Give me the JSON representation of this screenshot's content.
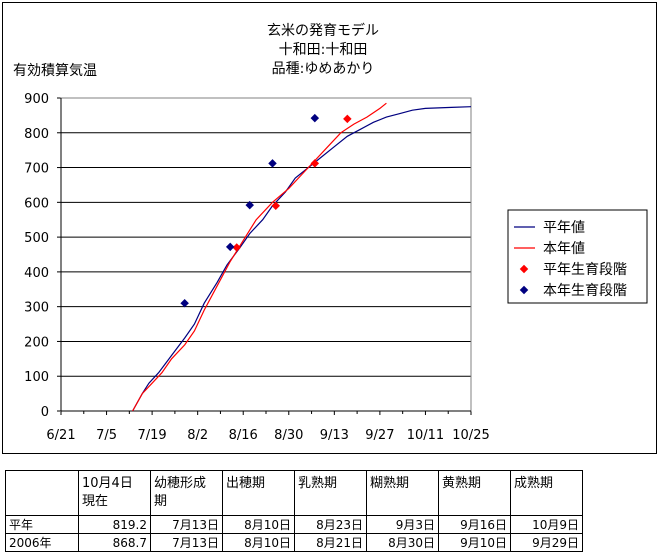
{
  "chart_data": {
    "type": "line",
    "title_lines": [
      "玄米の発育モデル",
      "十和田:十和田",
      "品種:ゆめあかり"
    ],
    "ylabel": "有効積算気温",
    "ylim": [
      0,
      900
    ],
    "yticks": [
      0,
      100,
      200,
      300,
      400,
      500,
      600,
      700,
      800,
      900
    ],
    "x_ticks": [
      "6/21",
      "7/5",
      "7/19",
      "8/2",
      "8/16",
      "8/30",
      "9/13",
      "9/27",
      "10/11",
      "10/25"
    ],
    "x_tick_day": [
      0,
      14,
      28,
      42,
      56,
      70,
      84,
      98,
      112,
      126
    ],
    "xlim": [
      0,
      126
    ],
    "grid": "horizontal",
    "legend_position": "right",
    "series": [
      {
        "name": "平年値",
        "kind": "line",
        "color": "#000080",
        "points": [
          [
            22,
            0
          ],
          [
            25,
            50
          ],
          [
            27,
            80
          ],
          [
            30,
            110
          ],
          [
            34,
            160
          ],
          [
            38,
            210
          ],
          [
            41,
            250
          ],
          [
            44,
            310
          ],
          [
            48,
            370
          ],
          [
            51,
            420
          ],
          [
            55,
            470
          ],
          [
            58,
            510
          ],
          [
            62,
            550
          ],
          [
            65,
            590
          ],
          [
            69,
            630
          ],
          [
            72,
            670
          ],
          [
            76,
            700
          ],
          [
            80,
            730
          ],
          [
            84,
            760
          ],
          [
            88,
            790
          ],
          [
            92,
            810
          ],
          [
            96,
            830
          ],
          [
            100,
            845
          ],
          [
            104,
            855
          ],
          [
            108,
            865
          ],
          [
            112,
            870
          ],
          [
            120,
            873
          ],
          [
            126,
            875
          ]
        ]
      },
      {
        "name": "本年値",
        "kind": "line",
        "color": "#ff0000",
        "points": [
          [
            22,
            0
          ],
          [
            25,
            50
          ],
          [
            28,
            80
          ],
          [
            31,
            110
          ],
          [
            34,
            150
          ],
          [
            38,
            190
          ],
          [
            41,
            230
          ],
          [
            44,
            290
          ],
          [
            48,
            360
          ],
          [
            52,
            430
          ],
          [
            56,
            490
          ],
          [
            60,
            550
          ],
          [
            65,
            600
          ],
          [
            70,
            640
          ],
          [
            74,
            680
          ],
          [
            78,
            720
          ],
          [
            82,
            760
          ],
          [
            86,
            800
          ],
          [
            90,
            825
          ],
          [
            94,
            845
          ],
          [
            98,
            870
          ],
          [
            100,
            885
          ]
        ]
      },
      {
        "name": "平年生育段階",
        "kind": "marker",
        "color": "#ff0000",
        "points": [
          [
            54,
            470
          ],
          [
            66,
            590
          ],
          [
            78,
            712
          ],
          [
            88,
            840
          ]
        ]
      },
      {
        "name": "本年生育段階",
        "kind": "marker",
        "color": "#000080",
        "points": [
          [
            38,
            310
          ],
          [
            52,
            472
          ],
          [
            58,
            592
          ],
          [
            65,
            712
          ],
          [
            78,
            842
          ]
        ]
      }
    ]
  },
  "table": {
    "headers": [
      [
        "",
        ""
      ],
      [
        "10月4日",
        "現在"
      ],
      [
        "幼穂形成",
        "期"
      ],
      [
        "出穂期",
        ""
      ],
      [
        "乳熟期",
        ""
      ],
      [
        "糊熟期",
        ""
      ],
      [
        "黄熟期",
        ""
      ],
      [
        "成熟期",
        ""
      ]
    ],
    "rows": [
      [
        "平年",
        "819.2",
        "7月13日",
        "8月10日",
        "8月23日",
        "9月3日",
        "9月16日",
        "10月9日"
      ],
      [
        "2006年",
        "868.7",
        "7月13日",
        "8月10日",
        "8月21日",
        "8月30日",
        "9月10日",
        "9月29日"
      ]
    ]
  }
}
